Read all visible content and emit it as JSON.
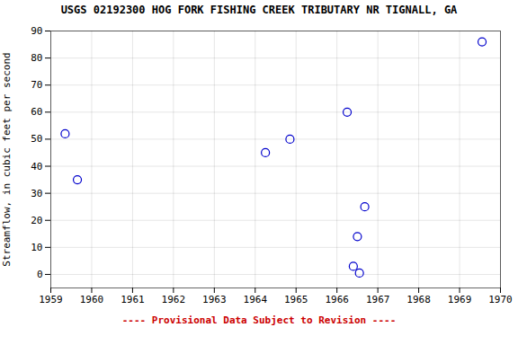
{
  "chart_data": {
    "type": "scatter",
    "title": "USGS 02192300 HOG FORK FISHING CREEK TRIBUTARY NR TIGNALL, GA",
    "ylabel": "Streamflow, in cubic feet per second",
    "x": [
      1959.35,
      1959.65,
      1964.25,
      1964.85,
      1966.25,
      1966.4,
      1966.5,
      1966.55,
      1966.68,
      1969.55
    ],
    "values": [
      52,
      35,
      45,
      50,
      60,
      3,
      14,
      0.5,
      25,
      86
    ],
    "color": "#0000CC",
    "marker": "circle",
    "xlim": [
      1959,
      1970
    ],
    "ylim": [
      -5,
      90
    ],
    "xticks": [
      1959,
      1960,
      1961,
      1962,
      1963,
      1964,
      1965,
      1966,
      1967,
      1968,
      1969,
      1970
    ],
    "yticks": [
      0,
      10,
      20,
      30,
      40,
      50,
      60,
      70,
      80,
      90
    ],
    "grid": true,
    "annotations": [
      {
        "text": "---- Provisional Data Subject to Revision ----",
        "color": "#cc0000"
      }
    ]
  }
}
